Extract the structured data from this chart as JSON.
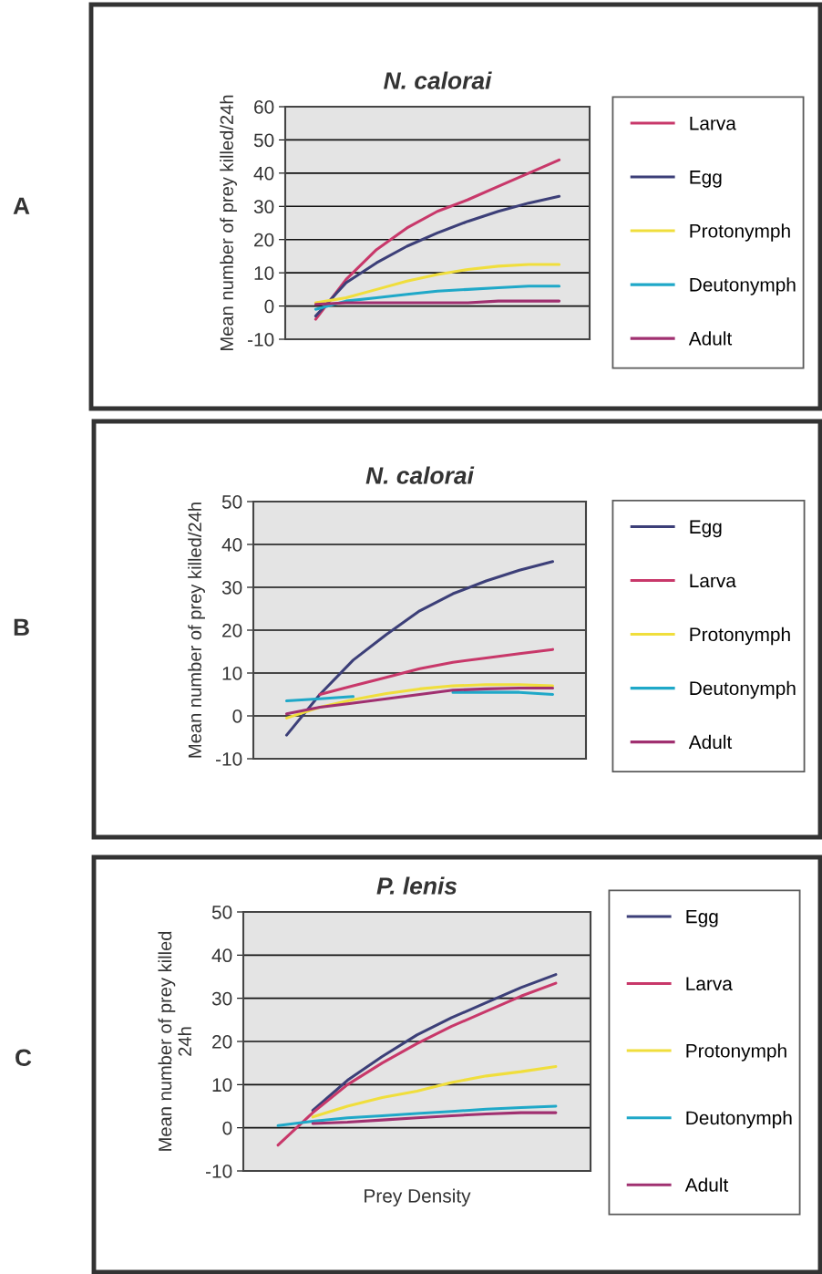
{
  "chart_data": [
    {
      "type": "line",
      "title": "N. calorai",
      "ylabel": "Mean number of prey killed/24h",
      "annotations": [
        "A"
      ],
      "categories": [
        null,
        null,
        null,
        null,
        null,
        null,
        null,
        null,
        null
      ],
      "ylim": [
        -10,
        60
      ],
      "yticks": [
        -10,
        0,
        10,
        20,
        30,
        40,
        50,
        60
      ],
      "grid": "y",
      "legend": "right",
      "tick_labels": "y",
      "marker": "none",
      "line_style": "solid",
      "series": [
        {
          "name": "Larva",
          "color": "#c8386a",
          "values": [
            -4,
            8,
            17,
            23.5,
            28.5,
            32,
            36,
            40,
            44
          ]
        },
        {
          "name": "Egg",
          "color": "#3c3f78",
          "values": [
            -3,
            7,
            13,
            18,
            22,
            25.5,
            28.5,
            31,
            33
          ]
        },
        {
          "name": "Protonymph",
          "color": "#f0de3c",
          "values": [
            1,
            2.5,
            5,
            7.5,
            9.5,
            11,
            12,
            12.5,
            12.5
          ]
        },
        {
          "name": "Deutonymph",
          "color": "#1fa8c8",
          "values": [
            -1,
            1.5,
            2.5,
            3.5,
            4.5,
            5,
            5.5,
            6,
            6
          ]
        },
        {
          "name": "Adult",
          "color": "#a03070",
          "values": [
            0.5,
            1,
            1,
            1,
            1,
            1,
            1.5,
            1.5,
            1.5
          ]
        }
      ]
    },
    {
      "type": "line",
      "title": "N. calorai",
      "ylabel": "Mean number of prey killed/24h",
      "annotations": [
        "B"
      ],
      "categories": [
        null,
        null,
        null,
        null,
        null,
        null,
        null,
        null,
        null
      ],
      "ylim": [
        -10,
        50
      ],
      "yticks": [
        -10,
        0,
        10,
        20,
        30,
        40,
        50
      ],
      "grid": "y",
      "legend": "right",
      "tick_labels": "y",
      "marker": "none",
      "line_style": "solid",
      "series": [
        {
          "name": "Egg",
          "color": "#3c3f78",
          "values": [
            -4.5,
            5,
            13,
            19,
            24.5,
            28.5,
            31.5,
            34,
            36
          ]
        },
        {
          "name": "Larva",
          "color": "#c8386a",
          "values": [
            null,
            5,
            7,
            9,
            11,
            12.5,
            13.5,
            14.5,
            15.5
          ]
        },
        {
          "name": "Protonymph",
          "color": "#f0de3c",
          "values": [
            -0.5,
            2,
            3.8,
            5.2,
            6.3,
            7,
            7.3,
            7.3,
            7
          ]
        },
        {
          "name": "Deutonymph",
          "color": "#1fa8c8",
          "values": [
            3.5,
            4,
            4.5,
            null,
            null,
            5.5,
            5.5,
            5.5,
            5
          ]
        },
        {
          "name": "Adult",
          "color": "#a03070",
          "values": [
            0.5,
            2,
            3,
            4,
            5,
            6,
            6.3,
            6.5,
            6.5
          ]
        }
      ]
    },
    {
      "type": "line",
      "title": "P. lenis",
      "xlabel": "Prey Density",
      "ylabel": "Mean number of prey killed\n24h",
      "annotations": [
        "C"
      ],
      "categories": [
        null,
        null,
        null,
        null,
        null,
        null,
        null,
        null,
        null
      ],
      "ylim": [
        -10,
        50
      ],
      "yticks": [
        -10,
        0,
        10,
        20,
        30,
        40,
        50
      ],
      "grid": "y",
      "legend": "right",
      "tick_labels": "y",
      "marker": "none",
      "line_style": "solid",
      "series": [
        {
          "name": "Egg",
          "color": "#3c3f78",
          "values": [
            null,
            4,
            11,
            16.5,
            21.5,
            25.5,
            29,
            32.5,
            35.5
          ]
        },
        {
          "name": "Larva",
          "color": "#c8386a",
          "values": [
            -4,
            3.5,
            10,
            15,
            19.5,
            23.5,
            27,
            30.5,
            33.5
          ]
        },
        {
          "name": "Protonymph",
          "color": "#f0de3c",
          "values": [
            null,
            2.5,
            5,
            7,
            8.5,
            10.5,
            12,
            13,
            14.2
          ]
        },
        {
          "name": "Deutonymph",
          "color": "#1fa8c8",
          "values": [
            0.5,
            1.5,
            2.3,
            2.8,
            3.3,
            3.8,
            4.3,
            4.7,
            5
          ]
        },
        {
          "name": "Adult",
          "color": "#a03070",
          "values": [
            null,
            1,
            1.3,
            1.8,
            2.3,
            2.8,
            3.2,
            3.5,
            3.5
          ]
        }
      ]
    }
  ]
}
